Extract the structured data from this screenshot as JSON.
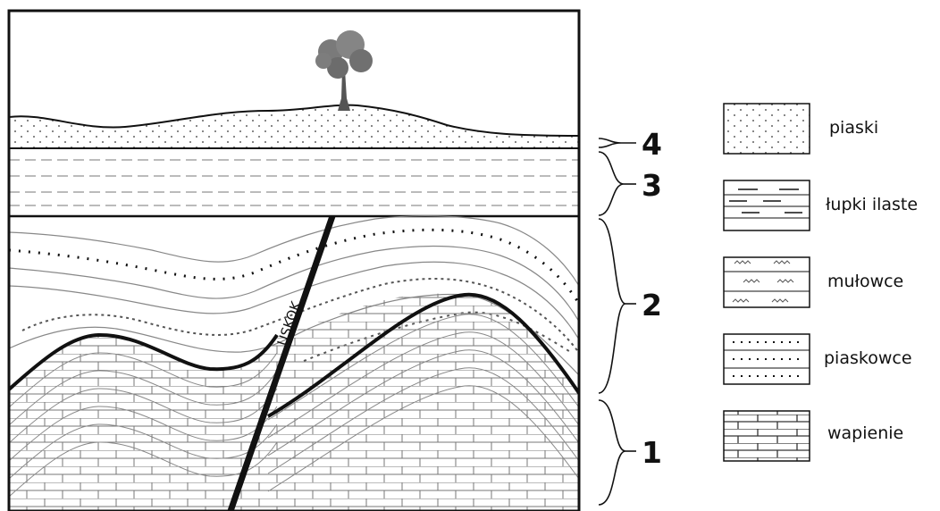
{
  "section": {
    "fault_label": "USKOK",
    "layer_numbers": [
      {
        "id": "4",
        "text": "4"
      },
      {
        "id": "3",
        "text": "3"
      },
      {
        "id": "2",
        "text": "2"
      },
      {
        "id": "1",
        "text": "1"
      }
    ]
  },
  "legend": [
    {
      "key": "sand",
      "label": "piaski"
    },
    {
      "key": "shale",
      "label": "łupki ilaste"
    },
    {
      "key": "siltstone",
      "label": "mułowce"
    },
    {
      "key": "sandstone",
      "label": "piaskowce"
    },
    {
      "key": "limestone",
      "label": "wapienie"
    }
  ],
  "colors": {
    "line": "#111111",
    "strata": "#888888",
    "tree": "#7a7a7a"
  }
}
